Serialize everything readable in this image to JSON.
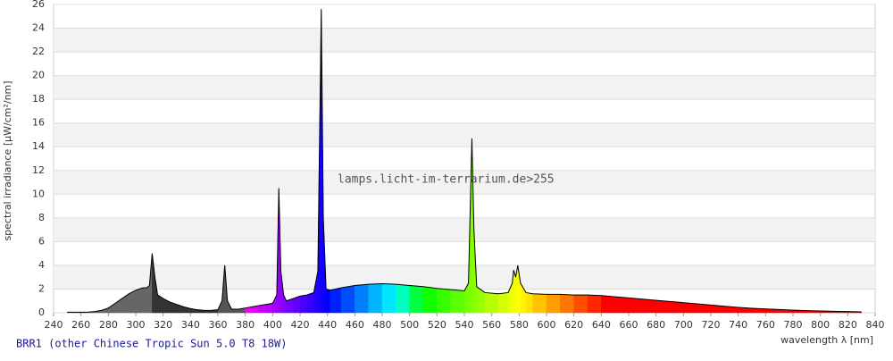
{
  "chart_data": {
    "type": "area",
    "title": "BRR1 (other Chinese Tropic Sun 5.0 T8 18W)",
    "xlabel": "wavelength λ [nm]",
    "ylabel": "spectral irradiance [µW/cm²/nm]",
    "annotation": "lamps.licht-im-terrarium.de>255",
    "x": [
      250,
      255,
      260,
      265,
      270,
      275,
      280,
      285,
      290,
      295,
      300,
      305,
      308,
      310,
      312,
      314,
      316,
      320,
      325,
      330,
      335,
      340,
      345,
      350,
      355,
      360,
      363,
      365,
      367,
      370,
      375,
      380,
      385,
      390,
      395,
      400,
      403,
      404.5,
      406,
      408,
      410,
      415,
      420,
      425,
      430,
      433,
      435.5,
      437,
      439,
      442,
      450,
      460,
      470,
      480,
      490,
      500,
      510,
      520,
      530,
      540,
      543,
      545.5,
      547,
      549,
      555,
      565,
      572,
      575,
      576,
      577.5,
      579,
      581,
      585,
      590,
      600,
      610,
      620,
      630,
      640,
      650,
      660,
      670,
      680,
      690,
      700,
      710,
      720,
      730,
      740,
      750,
      760,
      770,
      780,
      790,
      800,
      810,
      820,
      830
    ],
    "values": [
      0.05,
      0.05,
      0.05,
      0.05,
      0.1,
      0.2,
      0.4,
      0.8,
      1.2,
      1.6,
      1.9,
      2.1,
      2.1,
      2.3,
      5.0,
      3.0,
      1.5,
      1.2,
      0.9,
      0.7,
      0.5,
      0.35,
      0.25,
      0.2,
      0.2,
      0.25,
      1.0,
      4.0,
      1.0,
      0.3,
      0.3,
      0.4,
      0.5,
      0.6,
      0.7,
      0.8,
      1.5,
      10.5,
      3.5,
      1.5,
      1.0,
      1.2,
      1.4,
      1.5,
      1.7,
      3.5,
      25.6,
      8,
      2.0,
      1.9,
      2.1,
      2.3,
      2.4,
      2.45,
      2.4,
      2.3,
      2.2,
      2.05,
      1.95,
      1.85,
      2.5,
      14.7,
      7,
      2.2,
      1.7,
      1.6,
      1.7,
      2.5,
      3.6,
      3.0,
      4.0,
      2.5,
      1.7,
      1.6,
      1.55,
      1.55,
      1.5,
      1.5,
      1.45,
      1.35,
      1.25,
      1.15,
      1.05,
      0.95,
      0.85,
      0.75,
      0.65,
      0.55,
      0.45,
      0.38,
      0.32,
      0.27,
      0.22,
      0.18,
      0.15,
      0.12,
      0.1,
      0.08
    ],
    "line_color": "#000000",
    "xlim": [
      240,
      840
    ],
    "ylim": [
      0,
      26
    ],
    "xticks": [
      240,
      260,
      280,
      300,
      320,
      340,
      360,
      380,
      400,
      420,
      440,
      460,
      480,
      500,
      520,
      540,
      560,
      580,
      600,
      620,
      640,
      660,
      680,
      700,
      720,
      740,
      760,
      780,
      800,
      820,
      840
    ],
    "yticks": [
      0,
      2,
      4,
      6,
      8,
      10,
      12,
      14,
      16,
      18,
      20,
      22,
      24,
      26
    ],
    "grid": true
  }
}
